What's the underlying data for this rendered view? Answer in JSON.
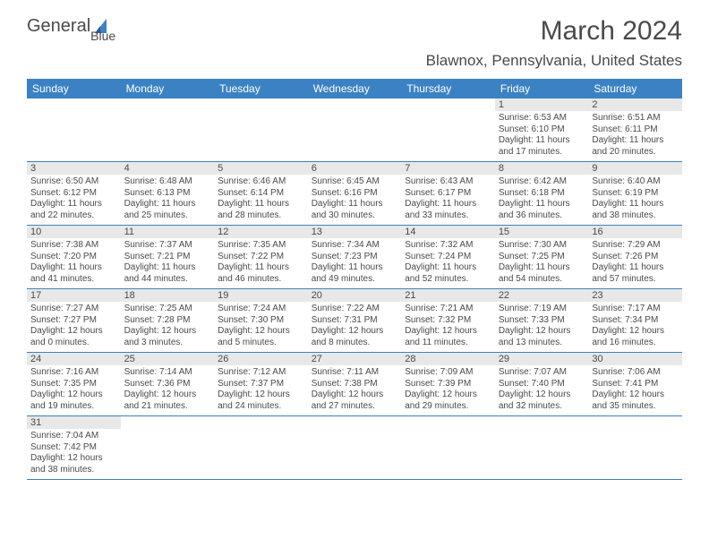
{
  "logo": {
    "text_general": "General",
    "text_blue": "Blue",
    "sail_color": "#3b82c4"
  },
  "title": "March 2024",
  "location": "Blawnox, Pennsylvania, United States",
  "colors": {
    "header_bg": "#3b82c4",
    "header_text": "#ffffff",
    "daynum_bg": "#e8e8e8",
    "text": "#4a4a4a",
    "row_border": "#3b82c4",
    "page_bg": "#ffffff"
  },
  "typography": {
    "title_fontsize": 30,
    "location_fontsize": 17,
    "weekday_fontsize": 12,
    "daynum_fontsize": 11,
    "cell_fontsize": 10
  },
  "weekdays": [
    "Sunday",
    "Monday",
    "Tuesday",
    "Wednesday",
    "Thursday",
    "Friday",
    "Saturday"
  ],
  "weeks": [
    [
      null,
      null,
      null,
      null,
      null,
      {
        "n": "1",
        "sunrise": "Sunrise: 6:53 AM",
        "sunset": "Sunset: 6:10 PM",
        "daylight": "Daylight: 11 hours and 17 minutes."
      },
      {
        "n": "2",
        "sunrise": "Sunrise: 6:51 AM",
        "sunset": "Sunset: 6:11 PM",
        "daylight": "Daylight: 11 hours and 20 minutes."
      }
    ],
    [
      {
        "n": "3",
        "sunrise": "Sunrise: 6:50 AM",
        "sunset": "Sunset: 6:12 PM",
        "daylight": "Daylight: 11 hours and 22 minutes."
      },
      {
        "n": "4",
        "sunrise": "Sunrise: 6:48 AM",
        "sunset": "Sunset: 6:13 PM",
        "daylight": "Daylight: 11 hours and 25 minutes."
      },
      {
        "n": "5",
        "sunrise": "Sunrise: 6:46 AM",
        "sunset": "Sunset: 6:14 PM",
        "daylight": "Daylight: 11 hours and 28 minutes."
      },
      {
        "n": "6",
        "sunrise": "Sunrise: 6:45 AM",
        "sunset": "Sunset: 6:16 PM",
        "daylight": "Daylight: 11 hours and 30 minutes."
      },
      {
        "n": "7",
        "sunrise": "Sunrise: 6:43 AM",
        "sunset": "Sunset: 6:17 PM",
        "daylight": "Daylight: 11 hours and 33 minutes."
      },
      {
        "n": "8",
        "sunrise": "Sunrise: 6:42 AM",
        "sunset": "Sunset: 6:18 PM",
        "daylight": "Daylight: 11 hours and 36 minutes."
      },
      {
        "n": "9",
        "sunrise": "Sunrise: 6:40 AM",
        "sunset": "Sunset: 6:19 PM",
        "daylight": "Daylight: 11 hours and 38 minutes."
      }
    ],
    [
      {
        "n": "10",
        "sunrise": "Sunrise: 7:38 AM",
        "sunset": "Sunset: 7:20 PM",
        "daylight": "Daylight: 11 hours and 41 minutes."
      },
      {
        "n": "11",
        "sunrise": "Sunrise: 7:37 AM",
        "sunset": "Sunset: 7:21 PM",
        "daylight": "Daylight: 11 hours and 44 minutes."
      },
      {
        "n": "12",
        "sunrise": "Sunrise: 7:35 AM",
        "sunset": "Sunset: 7:22 PM",
        "daylight": "Daylight: 11 hours and 46 minutes."
      },
      {
        "n": "13",
        "sunrise": "Sunrise: 7:34 AM",
        "sunset": "Sunset: 7:23 PM",
        "daylight": "Daylight: 11 hours and 49 minutes."
      },
      {
        "n": "14",
        "sunrise": "Sunrise: 7:32 AM",
        "sunset": "Sunset: 7:24 PM",
        "daylight": "Daylight: 11 hours and 52 minutes."
      },
      {
        "n": "15",
        "sunrise": "Sunrise: 7:30 AM",
        "sunset": "Sunset: 7:25 PM",
        "daylight": "Daylight: 11 hours and 54 minutes."
      },
      {
        "n": "16",
        "sunrise": "Sunrise: 7:29 AM",
        "sunset": "Sunset: 7:26 PM",
        "daylight": "Daylight: 11 hours and 57 minutes."
      }
    ],
    [
      {
        "n": "17",
        "sunrise": "Sunrise: 7:27 AM",
        "sunset": "Sunset: 7:27 PM",
        "daylight": "Daylight: 12 hours and 0 minutes."
      },
      {
        "n": "18",
        "sunrise": "Sunrise: 7:25 AM",
        "sunset": "Sunset: 7:28 PM",
        "daylight": "Daylight: 12 hours and 3 minutes."
      },
      {
        "n": "19",
        "sunrise": "Sunrise: 7:24 AM",
        "sunset": "Sunset: 7:30 PM",
        "daylight": "Daylight: 12 hours and 5 minutes."
      },
      {
        "n": "20",
        "sunrise": "Sunrise: 7:22 AM",
        "sunset": "Sunset: 7:31 PM",
        "daylight": "Daylight: 12 hours and 8 minutes."
      },
      {
        "n": "21",
        "sunrise": "Sunrise: 7:21 AM",
        "sunset": "Sunset: 7:32 PM",
        "daylight": "Daylight: 12 hours and 11 minutes."
      },
      {
        "n": "22",
        "sunrise": "Sunrise: 7:19 AM",
        "sunset": "Sunset: 7:33 PM",
        "daylight": "Daylight: 12 hours and 13 minutes."
      },
      {
        "n": "23",
        "sunrise": "Sunrise: 7:17 AM",
        "sunset": "Sunset: 7:34 PM",
        "daylight": "Daylight: 12 hours and 16 minutes."
      }
    ],
    [
      {
        "n": "24",
        "sunrise": "Sunrise: 7:16 AM",
        "sunset": "Sunset: 7:35 PM",
        "daylight": "Daylight: 12 hours and 19 minutes."
      },
      {
        "n": "25",
        "sunrise": "Sunrise: 7:14 AM",
        "sunset": "Sunset: 7:36 PM",
        "daylight": "Daylight: 12 hours and 21 minutes."
      },
      {
        "n": "26",
        "sunrise": "Sunrise: 7:12 AM",
        "sunset": "Sunset: 7:37 PM",
        "daylight": "Daylight: 12 hours and 24 minutes."
      },
      {
        "n": "27",
        "sunrise": "Sunrise: 7:11 AM",
        "sunset": "Sunset: 7:38 PM",
        "daylight": "Daylight: 12 hours and 27 minutes."
      },
      {
        "n": "28",
        "sunrise": "Sunrise: 7:09 AM",
        "sunset": "Sunset: 7:39 PM",
        "daylight": "Daylight: 12 hours and 29 minutes."
      },
      {
        "n": "29",
        "sunrise": "Sunrise: 7:07 AM",
        "sunset": "Sunset: 7:40 PM",
        "daylight": "Daylight: 12 hours and 32 minutes."
      },
      {
        "n": "30",
        "sunrise": "Sunrise: 7:06 AM",
        "sunset": "Sunset: 7:41 PM",
        "daylight": "Daylight: 12 hours and 35 minutes."
      }
    ],
    [
      {
        "n": "31",
        "sunrise": "Sunrise: 7:04 AM",
        "sunset": "Sunset: 7:42 PM",
        "daylight": "Daylight: 12 hours and 38 minutes."
      },
      null,
      null,
      null,
      null,
      null,
      null
    ]
  ]
}
